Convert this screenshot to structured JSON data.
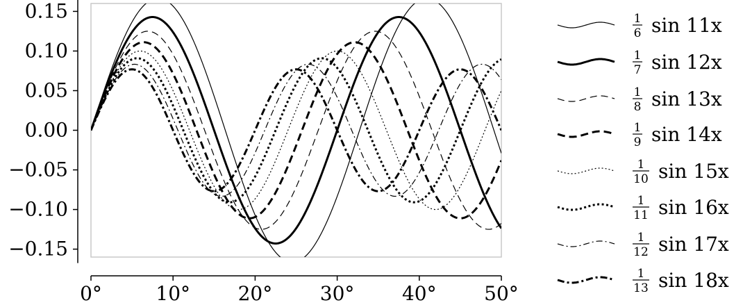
{
  "chart_data": {
    "type": "line",
    "title": "",
    "xlabel": "",
    "ylabel": "",
    "xlim": [
      0,
      50
    ],
    "ylim": [
      -0.16,
      0.16
    ],
    "grid": false,
    "legend_placement": "right",
    "x_ticks": [
      0,
      10,
      20,
      30,
      40,
      50
    ],
    "x_tick_labels": [
      "0°",
      "10°",
      "20°",
      "30°",
      "40°",
      "50°"
    ],
    "y_ticks": [
      0.15,
      0.1,
      0.05,
      0.0,
      -0.05,
      -0.1,
      -0.15
    ],
    "y_tick_labels": [
      "0.15",
      "0.10",
      "0.05",
      "0.00",
      "−0.05",
      "−0.10",
      "−0.15"
    ],
    "series": [
      {
        "name": "1/6 sin 11x",
        "denominator": "6",
        "fn": "sin 11x",
        "amplitude": 0.1667,
        "frequency": 11,
        "width": 1.2,
        "dash": "",
        "legend_num": "1",
        "legend_den": "6"
      },
      {
        "name": "1/7 sin 12x",
        "denominator": "7",
        "fn": "sin 12x",
        "amplitude": 0.1429,
        "frequency": 12,
        "width": 3.0,
        "dash": "",
        "legend_num": "1",
        "legend_den": "7"
      },
      {
        "name": "1/8 sin 13x",
        "denominator": "8",
        "fn": "sin 13x",
        "amplitude": 0.125,
        "frequency": 13,
        "width": 1.2,
        "dash": "dashed",
        "legend_num": "1",
        "legend_den": "8"
      },
      {
        "name": "1/9 sin 14x",
        "denominator": "9",
        "fn": "sin 14x",
        "amplitude": 0.1111,
        "frequency": 14,
        "width": 3.0,
        "dash": "dashed",
        "legend_num": "1",
        "legend_den": "9"
      },
      {
        "name": "1/10 sin 15x",
        "denominator": "10",
        "fn": "sin 15x",
        "amplitude": 0.1,
        "frequency": 15,
        "width": 1.2,
        "dash": "dotted",
        "legend_num": "1",
        "legend_den": "10"
      },
      {
        "name": "1/11 sin 16x",
        "denominator": "11",
        "fn": "sin 16x",
        "amplitude": 0.0909,
        "frequency": 16,
        "width": 3.0,
        "dash": "dotted",
        "legend_num": "1",
        "legend_den": "11"
      },
      {
        "name": "1/12 sin 17x",
        "denominator": "12",
        "fn": "sin 17x",
        "amplitude": 0.0833,
        "frequency": 17,
        "width": 1.2,
        "dash": "dashdot",
        "legend_num": "1",
        "legend_den": "12"
      },
      {
        "name": "1/13 sin 18x",
        "denominator": "13",
        "fn": "sin 18x",
        "amplitude": 0.0769,
        "frequency": 18,
        "width": 3.0,
        "dash": "dashdot",
        "legend_num": "1",
        "legend_den": "13"
      }
    ]
  }
}
